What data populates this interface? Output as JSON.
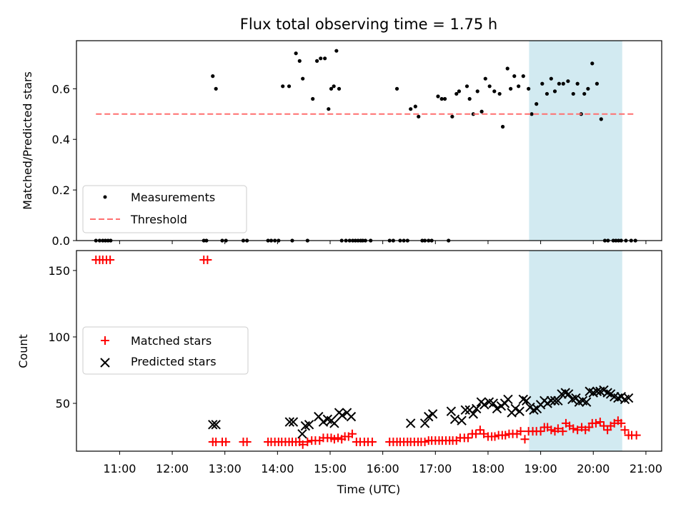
{
  "title": "Flux total observing time = 1.75 h",
  "colors": {
    "measurements": "#000000",
    "threshold": "#ff6f6f",
    "matched": "#ff0000",
    "predicted": "#000000",
    "highlight": "#add8e6"
  },
  "chart_data": [
    {
      "type": "scatter",
      "ylabel": "Matched/Predicted stars",
      "xlim": [
        10.18,
        21.3
      ],
      "ylim": [
        0,
        0.79
      ],
      "yticks": [
        0.0,
        0.2,
        0.4,
        0.6
      ],
      "ytick_labels": [
        "0.0",
        "0.2",
        "0.4",
        "0.6"
      ],
      "shaded_region": [
        18.78,
        20.55
      ],
      "legend_position": "lower-left",
      "legend": [
        "Measurements",
        "Threshold"
      ],
      "threshold": {
        "name": "Threshold",
        "y": 0.5,
        "x": [
          10.55,
          20.77
        ]
      },
      "series": [
        {
          "name": "Measurements",
          "x": [
            10.55,
            10.62,
            10.68,
            10.73,
            10.78,
            10.83,
            12.6,
            12.65,
            12.77,
            12.83,
            12.95,
            13.02,
            13.35,
            13.42,
            13.82,
            13.88,
            13.95,
            14.02,
            14.1,
            14.22,
            14.28,
            14.35,
            14.42,
            14.48,
            14.57,
            14.67,
            14.75,
            14.82,
            14.9,
            14.97,
            15.02,
            15.07,
            15.12,
            15.17,
            15.22,
            15.3,
            15.37,
            15.43,
            15.48,
            15.53,
            15.58,
            15.62,
            15.67,
            15.77,
            16.13,
            16.2,
            16.27,
            16.33,
            16.4,
            16.47,
            16.53,
            16.62,
            16.68,
            16.75,
            16.8,
            16.87,
            16.93,
            17.05,
            17.12,
            17.18,
            17.25,
            17.32,
            17.4,
            17.45,
            17.6,
            17.65,
            17.72,
            17.8,
            17.88,
            17.95,
            18.03,
            18.12,
            18.22,
            18.28,
            18.37,
            18.43,
            18.5,
            18.58,
            18.67,
            18.77,
            18.83,
            18.92,
            19.03,
            19.12,
            19.2,
            19.27,
            19.35,
            19.43,
            19.52,
            19.62,
            19.7,
            19.77,
            19.83,
            19.9,
            19.98,
            20.07,
            20.15,
            20.22,
            20.28,
            20.38,
            20.43,
            20.48,
            20.53,
            20.62,
            20.72,
            20.8
          ],
          "y": [
            0,
            0,
            0,
            0,
            0,
            0,
            0,
            0,
            0.65,
            0.6,
            0,
            0,
            0,
            0,
            0,
            0,
            0,
            0,
            0.61,
            0.61,
            0,
            0.74,
            0.71,
            0.64,
            0,
            0.56,
            0.71,
            0.72,
            0.72,
            0.52,
            0.6,
            0.61,
            0.75,
            0.6,
            0,
            0,
            0,
            0,
            0,
            0,
            0,
            0,
            0,
            0,
            0,
            0,
            0.6,
            0,
            0,
            0,
            0.52,
            0.53,
            0.49,
            0,
            0,
            0,
            0,
            0.57,
            0.56,
            0.56,
            0,
            0.49,
            0.58,
            0.59,
            0.61,
            0.56,
            0.5,
            0.59,
            0.51,
            0.64,
            0.61,
            0.59,
            0.58,
            0.45,
            0.68,
            0.6,
            0.65,
            0.61,
            0.65,
            0.6,
            0.5,
            0.54,
            0.62,
            0.58,
            0.64,
            0.59,
            0.62,
            0.62,
            0.63,
            0.58,
            0.62,
            0.5,
            0.58,
            0.6,
            0.7,
            0.62,
            0.48,
            0,
            0,
            0,
            0,
            0,
            0,
            0,
            0,
            0
          ]
        }
      ]
    },
    {
      "type": "scatter",
      "xlabel": "Time (UTC)",
      "ylabel": "Count",
      "xlim": [
        10.18,
        21.3
      ],
      "ylim": [
        14,
        165
      ],
      "xticks": [
        11,
        12,
        13,
        14,
        15,
        16,
        17,
        18,
        19,
        20,
        21
      ],
      "xtick_labels": [
        "11:00",
        "12:00",
        "13:00",
        "14:00",
        "15:00",
        "16:00",
        "17:00",
        "18:00",
        "19:00",
        "20:00",
        "21:00"
      ],
      "yticks": [
        50,
        100,
        150
      ],
      "ytick_labels": [
        "50",
        "100",
        "150"
      ],
      "shaded_region": [
        18.78,
        20.55
      ],
      "legend_position": "center-left",
      "legend": [
        "Matched stars",
        "Predicted stars"
      ],
      "series": [
        {
          "name": "Matched stars",
          "x": [
            10.55,
            10.62,
            10.68,
            10.75,
            10.82,
            12.6,
            12.67,
            12.77,
            12.83,
            12.95,
            13.02,
            13.35,
            13.42,
            13.82,
            13.88,
            13.95,
            14.02,
            14.08,
            14.15,
            14.22,
            14.28,
            14.35,
            14.42,
            14.48,
            14.57,
            14.65,
            14.72,
            14.8,
            14.87,
            14.95,
            15.02,
            15.08,
            15.15,
            15.22,
            15.28,
            15.35,
            15.42,
            15.5,
            15.57,
            15.65,
            15.72,
            15.8,
            16.13,
            16.2,
            16.27,
            16.33,
            16.4,
            16.47,
            16.53,
            16.6,
            16.67,
            16.73,
            16.8,
            16.87,
            16.93,
            17.0,
            17.07,
            17.13,
            17.2,
            17.27,
            17.33,
            17.4,
            17.47,
            17.55,
            17.62,
            17.7,
            17.77,
            17.85,
            17.92,
            18.0,
            18.07,
            18.13,
            18.2,
            18.27,
            18.33,
            18.4,
            18.47,
            18.55,
            18.62,
            18.7,
            18.77,
            18.85,
            18.92,
            19.0,
            19.07,
            19.13,
            19.2,
            19.27,
            19.33,
            19.42,
            19.48,
            19.55,
            19.62,
            19.7,
            19.78,
            19.85,
            19.92,
            19.98,
            20.05,
            20.13,
            20.2,
            20.27,
            20.33,
            20.4,
            20.47,
            20.53,
            20.6,
            20.67,
            20.73,
            20.82
          ],
          "y": [
            158,
            158,
            158,
            158,
            158,
            158,
            158,
            21,
            21,
            21,
            21,
            21,
            21,
            21,
            21,
            21,
            21,
            21,
            21,
            21,
            21,
            21,
            21,
            19,
            21,
            22,
            22,
            22,
            24,
            24,
            24,
            23,
            24,
            23,
            25,
            25,
            27,
            21,
            21,
            21,
            21,
            21,
            21,
            21,
            21,
            21,
            21,
            21,
            21,
            21,
            21,
            21,
            21,
            22,
            22,
            22,
            22,
            22,
            22,
            22,
            22,
            22,
            24,
            24,
            24,
            27,
            27,
            30,
            27,
            25,
            25,
            25,
            26,
            26,
            26,
            27,
            27,
            27,
            29,
            23,
            29,
            29,
            29,
            29,
            32,
            32,
            30,
            29,
            31,
            29,
            35,
            33,
            31,
            30,
            32,
            30,
            32,
            35,
            35,
            36,
            33,
            30,
            33,
            35,
            37,
            35,
            30,
            26,
            26,
            26
          ],
          "color": "#ff0000"
        },
        {
          "name": "Predicted stars",
          "x": [
            12.77,
            12.83,
            14.23,
            14.3,
            14.47,
            14.53,
            14.6,
            14.78,
            14.87,
            14.95,
            15.02,
            15.08,
            15.17,
            15.23,
            15.32,
            15.4,
            16.53,
            16.8,
            16.87,
            16.95,
            17.3,
            17.37,
            17.5,
            17.57,
            17.65,
            17.72,
            17.78,
            17.87,
            17.93,
            18.02,
            18.1,
            18.17,
            18.25,
            18.32,
            18.38,
            18.45,
            18.52,
            18.6,
            18.67,
            18.73,
            18.8,
            18.87,
            18.93,
            19.0,
            19.07,
            19.13,
            19.2,
            19.27,
            19.33,
            19.4,
            19.47,
            19.53,
            19.6,
            19.67,
            19.73,
            19.8,
            19.87,
            19.93,
            20.0,
            20.07,
            20.13,
            20.2,
            20.27,
            20.33,
            20.4,
            20.47,
            20.53,
            20.6,
            20.67
          ],
          "y": [
            34,
            34,
            36,
            36,
            27,
            33,
            34,
            40,
            36,
            38,
            37,
            35,
            43,
            41,
            43,
            40,
            35,
            35,
            40,
            42,
            44,
            38,
            37,
            45,
            45,
            42,
            46,
            51,
            49,
            51,
            50,
            46,
            48,
            50,
            53,
            43,
            46,
            44,
            53,
            52,
            47,
            45,
            46,
            49,
            52,
            50,
            52,
            52,
            52,
            57,
            58,
            57,
            53,
            54,
            51,
            52,
            51,
            59,
            58,
            59,
            59,
            60,
            58,
            57,
            55,
            54,
            55,
            53,
            54
          ],
          "color": "#000000"
        }
      ]
    }
  ]
}
